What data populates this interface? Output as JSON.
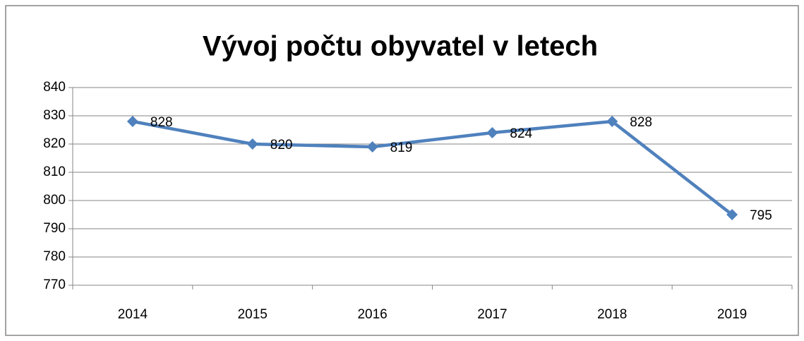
{
  "chart_data": {
    "type": "line",
    "title": "Vývoj počtu obyvatel v letech",
    "categories": [
      "2014",
      "2015",
      "2016",
      "2017",
      "2018",
      "2019"
    ],
    "values": [
      828,
      820,
      819,
      824,
      828,
      795
    ],
    "color": "#4f81bd",
    "ylim": [
      770,
      840
    ],
    "yticks": [
      770,
      780,
      790,
      800,
      810,
      820,
      830,
      840
    ],
    "grid": true
  }
}
